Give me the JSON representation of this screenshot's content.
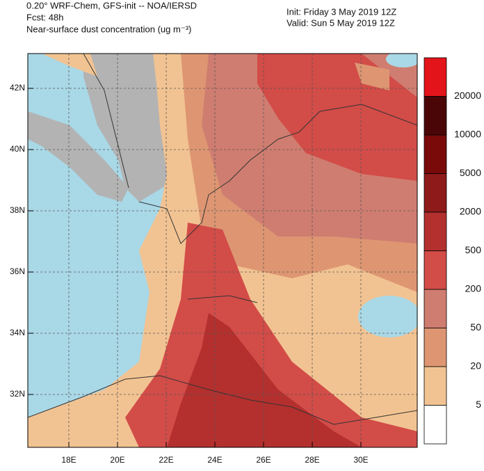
{
  "header": {
    "lines": [
      "0.20° WRF-Chem, GFS-init -- NOA/IERSD",
      "Fcst: 48h",
      "Near-surface dust concentration (ug m⁻³)"
    ],
    "init": "Init: Friday 3 May 2019  12Z",
    "valid": "Valid: Sun 5 May 2019  12Z"
  },
  "map": {
    "lat_labels": [
      "42N",
      "40N",
      "38N",
      "36N",
      "34N",
      "32N"
    ],
    "lon_labels": [
      "18E",
      "20E",
      "22E",
      "24E",
      "26E",
      "28E",
      "30E"
    ]
  },
  "colorbar": {
    "levels": [
      20000,
      10000,
      5000,
      2000,
      500,
      200,
      50,
      20,
      5
    ],
    "colors": [
      "#e3141a",
      "#4a0606",
      "#7a0a0a",
      "#8e1a1a",
      "#b3302e",
      "#d24c48",
      "#cf7d70",
      "#de9672",
      "#f2c392",
      "#ffffff"
    ]
  }
}
